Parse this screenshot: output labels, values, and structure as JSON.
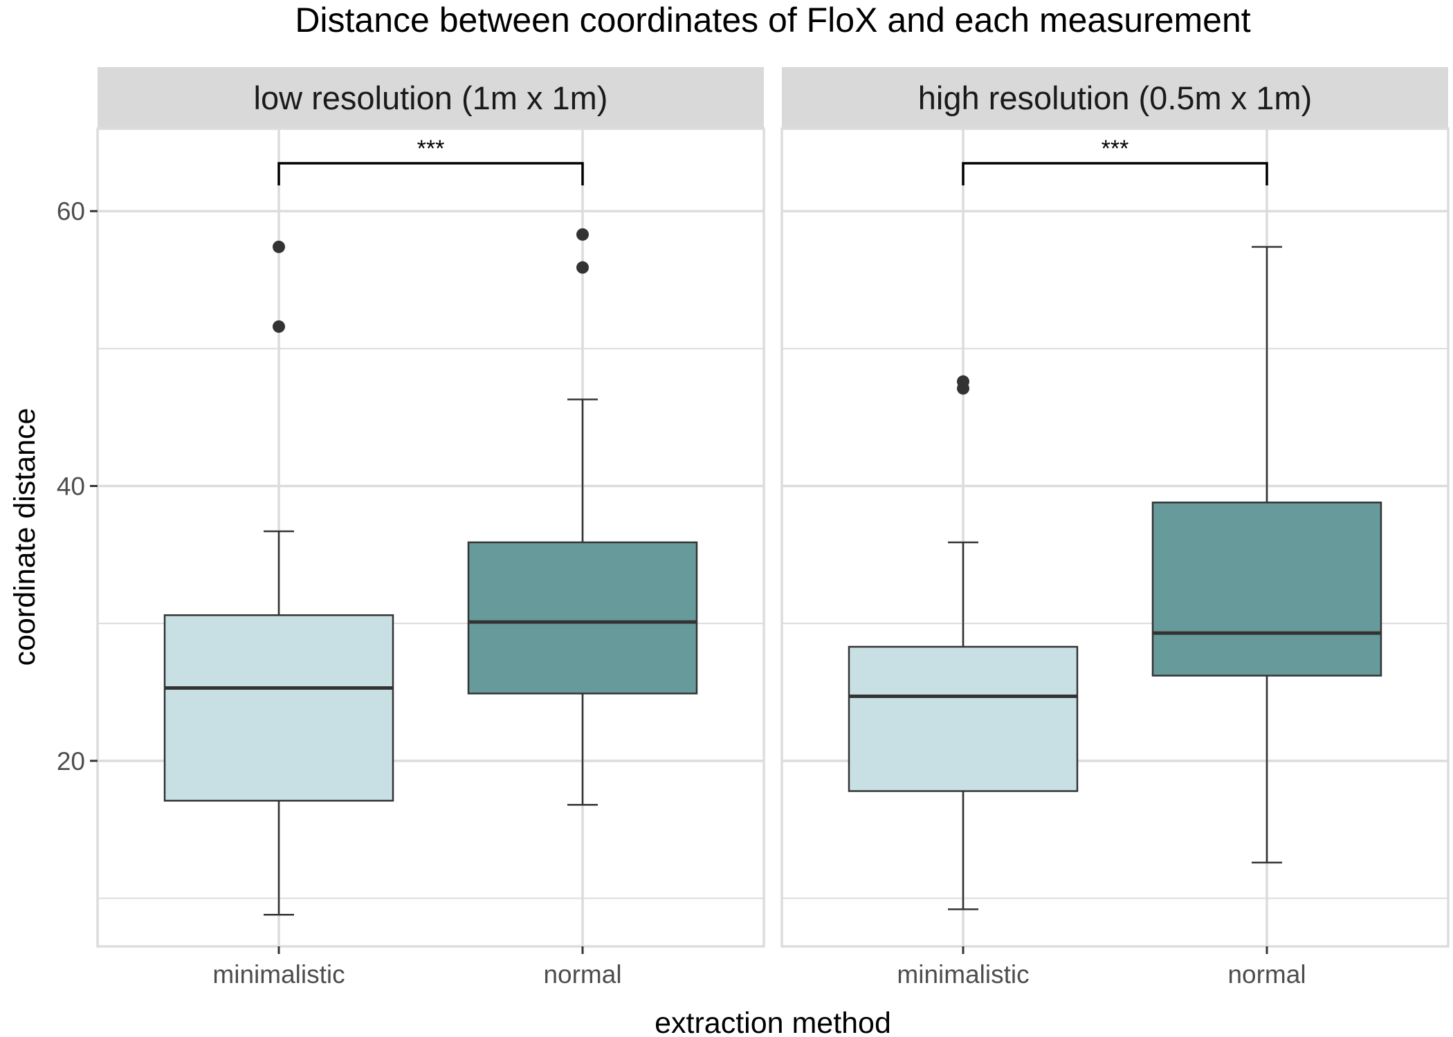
{
  "chart_data": {
    "type": "boxplot",
    "title": "Distance between coordinates of FloX and each measurement",
    "xlabel": "extraction method",
    "ylabel": "coordinate distance",
    "ylim": [
      6.5,
      66
    ],
    "y_ticks": [
      20,
      40,
      60
    ],
    "y_minor_ticks": [
      10,
      30,
      50
    ],
    "categories": [
      "minimalistic",
      "normal"
    ],
    "colors": {
      "minimalistic": "#c8e0e4",
      "normal": "#679a9a",
      "strip": "#d9d9d9",
      "grid": "#dcdcdc"
    },
    "grid": true,
    "panels": [
      {
        "label": "low resolution (1m x 1m)",
        "significance": "***",
        "boxes": [
          {
            "category": "minimalistic",
            "whisker_low": 8.8,
            "q1": 17.1,
            "median": 25.3,
            "q3": 30.6,
            "whisker_high": 36.7,
            "outliers": [
              51.6,
              57.4
            ]
          },
          {
            "category": "normal",
            "whisker_low": 16.8,
            "q1": 24.9,
            "median": 30.1,
            "q3": 35.9,
            "whisker_high": 46.3,
            "outliers": [
              55.9,
              58.3
            ]
          }
        ]
      },
      {
        "label": "high resolution (0.5m x 1m)",
        "significance": "***",
        "boxes": [
          {
            "category": "minimalistic",
            "whisker_low": 9.2,
            "q1": 17.8,
            "median": 24.7,
            "q3": 28.3,
            "whisker_high": 35.9,
            "outliers": [
              47.1,
              47.6
            ]
          },
          {
            "category": "normal",
            "whisker_low": 12.6,
            "q1": 26.2,
            "median": 29.3,
            "q3": 38.8,
            "whisker_high": 57.4,
            "outliers": []
          }
        ]
      }
    ]
  }
}
